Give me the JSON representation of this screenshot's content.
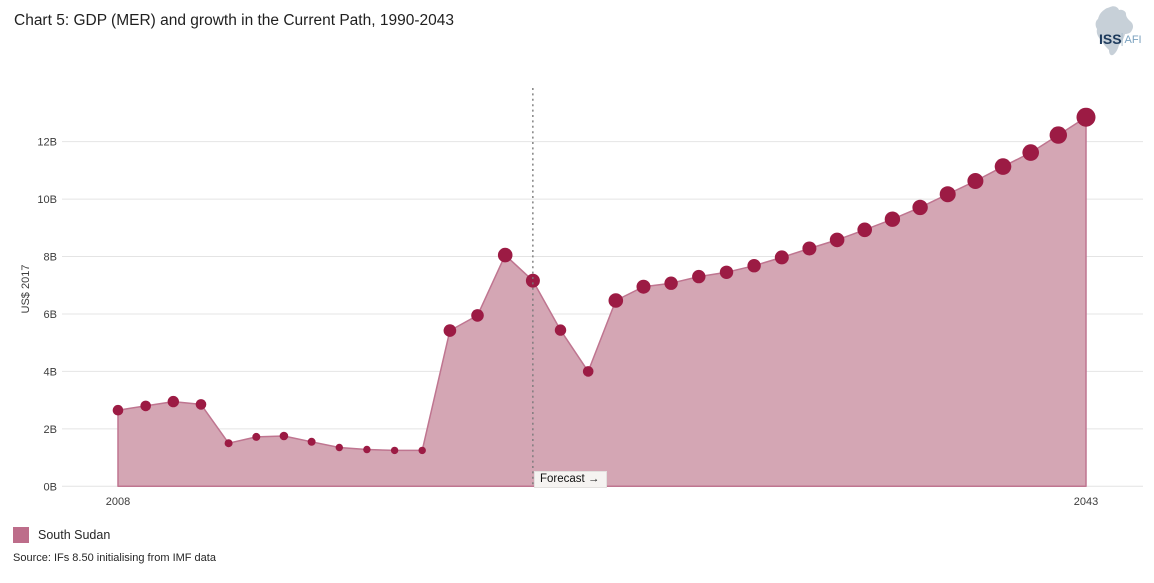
{
  "header": {
    "title": "Chart 5: GDP (MER) and growth in the Current Path, 1990-2043"
  },
  "logo": {
    "org": "ISS",
    "unit": "AFI"
  },
  "legend": {
    "items": [
      {
        "label": "South Sudan",
        "color": "#bd6d8a"
      }
    ]
  },
  "source": "Source: IFs 8.50 initialising from IMF data",
  "colors": {
    "accent_dot": "#9c1b44",
    "area_fill": "#d4a6b4",
    "area_line": "#bf7590",
    "legend_swatch": "#bd6d8a",
    "gridline": "#e4e4e4",
    "forecast_line": "#7a7a7a",
    "text_axis": "#3c3c3c",
    "logo_map": "#c7d0d8",
    "logo_navy": "#1d3a5c",
    "logo_blue": "#7ba2bf"
  },
  "chart_data": {
    "type": "area",
    "title": "Chart 5: GDP (MER) and growth in the Current Path, 1990-2043",
    "xlabel": "",
    "ylabel": "US$ 2017",
    "ylim": [
      0,
      14
    ],
    "grid": true,
    "legend_position": "bottom-left",
    "series_name": "South Sudan",
    "x": [
      2008,
      2009,
      2010,
      2011,
      2012,
      2013,
      2014,
      2015,
      2016,
      2017,
      2018,
      2019,
      2020,
      2021,
      2022,
      2023,
      2024,
      2025,
      2026,
      2027,
      2028,
      2029,
      2030,
      2031,
      2032,
      2033,
      2034,
      2035,
      2036,
      2037,
      2038,
      2039,
      2040,
      2041,
      2042,
      2043
    ],
    "values": [
      2.65,
      2.8,
      2.95,
      2.85,
      1.5,
      1.72,
      1.75,
      1.55,
      1.35,
      1.28,
      1.25,
      1.25,
      5.42,
      5.95,
      8.05,
      7.16,
      5.44,
      4.0,
      6.47,
      6.95,
      7.07,
      7.3,
      7.45,
      7.68,
      7.97,
      8.28,
      8.58,
      8.93,
      9.3,
      9.71,
      10.17,
      10.63,
      11.13,
      11.62,
      12.23,
      12.85
    ],
    "values_unit": "billion US$ 2017",
    "point_radius": [
      5.3,
      5.3,
      5.7,
      5.3,
      4,
      4,
      4.3,
      4,
      3.7,
      3.7,
      3.7,
      3.7,
      6.3,
      6.3,
      7.3,
      7,
      5.7,
      5.3,
      7.3,
      7,
      6.7,
      6.7,
      6.7,
      6.7,
      7,
      7,
      7.3,
      7.3,
      7.7,
      7.7,
      8,
      8,
      8.3,
      8.3,
      8.7,
      9.5
    ],
    "yticks": [
      {
        "value": 0,
        "label": "0B"
      },
      {
        "value": 2,
        "label": "2B"
      },
      {
        "value": 4,
        "label": "4B"
      },
      {
        "value": 6,
        "label": "6B"
      },
      {
        "value": 8,
        "label": "8B"
      },
      {
        "value": 10,
        "label": "10B"
      },
      {
        "value": 12,
        "label": "12B"
      }
    ],
    "xticks": [
      {
        "year": 2008,
        "label": "2008"
      },
      {
        "year": 2043,
        "label": "2043"
      }
    ],
    "forecast": {
      "label": "Forecast →",
      "start_year": 2023
    }
  }
}
